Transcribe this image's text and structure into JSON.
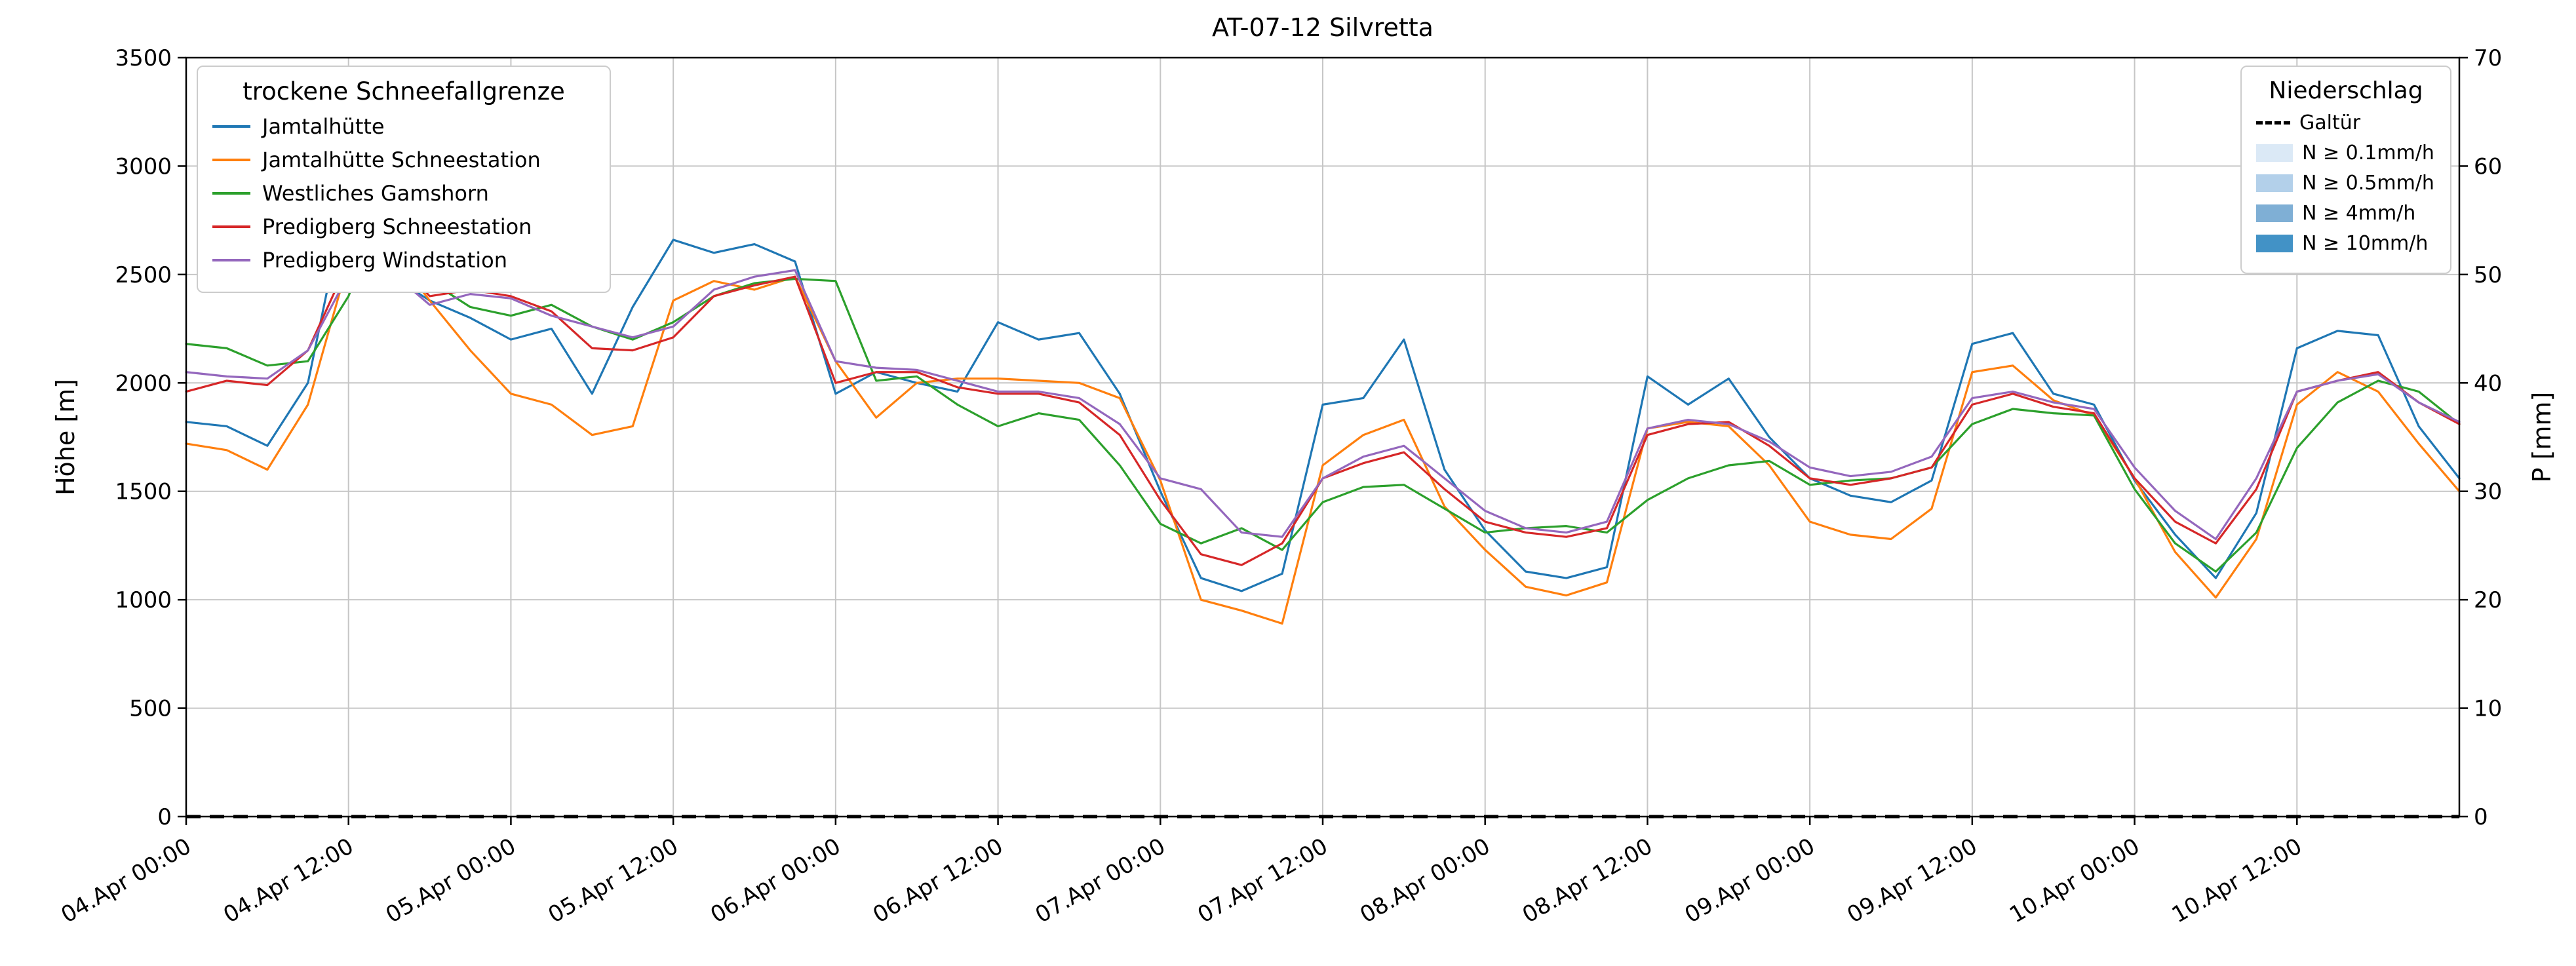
{
  "chart_data": {
    "type": "line",
    "title": "AT-07-12 Silvretta",
    "ylabel_left": "Höhe [m]",
    "ylabel_right": "P [mm]",
    "ylim_left": [
      0,
      3500
    ],
    "ylim_right": [
      0,
      70
    ],
    "y_ticks_left": [
      0,
      500,
      1000,
      1500,
      2000,
      2500,
      3000,
      3500
    ],
    "y_ticks_right": [
      0,
      10,
      20,
      30,
      40,
      50,
      60,
      70
    ],
    "x_range_hours": [
      0,
      168
    ],
    "grid": true,
    "colors": {
      "grid": "#c6c6c6",
      "spine": "#000000",
      "background": "#ffffff"
    },
    "x_ticks": [
      {
        "hour": 0,
        "label": "04.Apr 00:00"
      },
      {
        "hour": 12,
        "label": "04.Apr 12:00"
      },
      {
        "hour": 24,
        "label": "05.Apr 00:00"
      },
      {
        "hour": 36,
        "label": "05.Apr 12:00"
      },
      {
        "hour": 48,
        "label": "06.Apr 00:00"
      },
      {
        "hour": 60,
        "label": "06.Apr 12:00"
      },
      {
        "hour": 72,
        "label": "07.Apr 00:00"
      },
      {
        "hour": 84,
        "label": "07.Apr 12:00"
      },
      {
        "hour": 96,
        "label": "08.Apr 00:00"
      },
      {
        "hour": 108,
        "label": "08.Apr 12:00"
      },
      {
        "hour": 120,
        "label": "09.Apr 00:00"
      },
      {
        "hour": 132,
        "label": "09.Apr 12:00"
      },
      {
        "hour": 144,
        "label": "10.Apr 00:00"
      },
      {
        "hour": 156,
        "label": "10.Apr 12:00"
      }
    ],
    "x_hours": [
      0,
      3,
      6,
      9,
      12,
      15,
      18,
      21,
      24,
      27,
      30,
      33,
      36,
      39,
      42,
      45,
      48,
      51,
      54,
      57,
      60,
      63,
      66,
      69,
      72,
      75,
      78,
      81,
      84,
      87,
      90,
      93,
      96,
      99,
      102,
      105,
      108,
      111,
      114,
      117,
      120,
      123,
      126,
      129,
      132,
      135,
      138,
      141,
      144,
      147,
      150,
      153,
      156,
      159,
      162,
      165,
      168
    ],
    "series": [
      {
        "name": "Jamtalhütte",
        "color": "#1f77b4",
        "values": [
          1820,
          1800,
          1710,
          2000,
          2900,
          2500,
          2380,
          2300,
          2200,
          2250,
          1950,
          2350,
          2660,
          2600,
          2640,
          2560,
          1950,
          2050,
          2000,
          1960,
          2280,
          2200,
          2230,
          1950,
          1500,
          1100,
          1040,
          1120,
          1900,
          1930,
          2200,
          1600,
          1320,
          1130,
          1100,
          1150,
          2030,
          1900,
          2020,
          1750,
          1560,
          1480,
          1450,
          1550,
          2180,
          2230,
          1950,
          1900,
          1550,
          1300,
          1100,
          1400,
          2160,
          2240,
          2220,
          1800,
          1560
        ]
      },
      {
        "name": "Jamtalhütte Schneestation",
        "color": "#ff7f0e",
        "values": [
          1720,
          1690,
          1600,
          1900,
          2560,
          2620,
          2380,
          2150,
          1950,
          1900,
          1760,
          1800,
          2380,
          2470,
          2430,
          2490,
          2100,
          1840,
          2000,
          2020,
          2020,
          2010,
          2000,
          1930,
          1550,
          1000,
          950,
          890,
          1620,
          1760,
          1830,
          1430,
          1230,
          1060,
          1020,
          1080,
          1790,
          1820,
          1800,
          1620,
          1360,
          1300,
          1280,
          1420,
          2050,
          2080,
          1920,
          1850,
          1560,
          1220,
          1010,
          1280,
          1900,
          2050,
          1960,
          1720,
          1500
        ]
      },
      {
        "name": "Westliches Gamshorn",
        "color": "#2ca02c",
        "values": [
          2180,
          2160,
          2080,
          2100,
          2400,
          2880,
          2470,
          2350,
          2310,
          2360,
          2260,
          2200,
          2280,
          2400,
          2460,
          2480,
          2470,
          2010,
          2030,
          1900,
          1800,
          1860,
          1830,
          1620,
          1350,
          1260,
          1330,
          1230,
          1450,
          1520,
          1530,
          1420,
          1310,
          1330,
          1340,
          1310,
          1460,
          1560,
          1620,
          1640,
          1530,
          1550,
          1560,
          1610,
          1810,
          1880,
          1860,
          1850,
          1510,
          1260,
          1130,
          1310,
          1700,
          1910,
          2010,
          1960,
          1810
        ]
      },
      {
        "name": "Predigberg Schneestation",
        "color": "#d62728",
        "values": [
          1960,
          2010,
          1990,
          2150,
          2560,
          2600,
          2400,
          2430,
          2400,
          2330,
          2160,
          2150,
          2210,
          2400,
          2450,
          2490,
          2000,
          2050,
          2050,
          1980,
          1950,
          1950,
          1910,
          1760,
          1460,
          1210,
          1160,
          1260,
          1560,
          1630,
          1680,
          1510,
          1360,
          1310,
          1290,
          1330,
          1760,
          1810,
          1820,
          1710,
          1560,
          1530,
          1560,
          1610,
          1900,
          1950,
          1890,
          1860,
          1560,
          1360,
          1260,
          1510,
          1960,
          2010,
          2050,
          1910,
          1810
        ]
      },
      {
        "name": "Predigberg Windstation",
        "color": "#9467bd",
        "values": [
          2050,
          2030,
          2020,
          2150,
          2500,
          2520,
          2360,
          2410,
          2390,
          2310,
          2260,
          2210,
          2260,
          2430,
          2490,
          2520,
          2100,
          2070,
          2060,
          2010,
          1960,
          1960,
          1930,
          1810,
          1560,
          1510,
          1310,
          1290,
          1560,
          1660,
          1710,
          1560,
          1410,
          1330,
          1310,
          1360,
          1790,
          1830,
          1810,
          1730,
          1610,
          1570,
          1590,
          1660,
          1930,
          1960,
          1910,
          1880,
          1610,
          1410,
          1280,
          1560,
          1960,
          2010,
          2040,
          1910,
          1820
        ]
      }
    ],
    "precipitation_line": {
      "name": "Galtür",
      "color": "#000000",
      "style": "dashed",
      "axis": "right",
      "x": [
        0,
        168
      ],
      "values": [
        0,
        0
      ]
    },
    "legend_snowline": {
      "title": "trockene Schneefallgrenze"
    },
    "legend_precip": {
      "title": "Niederschlag",
      "entries": [
        {
          "label": "Galtür",
          "swatch": "dashed-line",
          "color": "#000000"
        },
        {
          "label": "N ≥ 0.1mm/h",
          "swatch": "patch",
          "color": "#dbe9f6"
        },
        {
          "label": "N ≥ 0.5mm/h",
          "swatch": "patch",
          "color": "#b3d0ea"
        },
        {
          "label": "N ≥ 4mm/h",
          "swatch": "patch",
          "color": "#7fafd5"
        },
        {
          "label": "N ≥ 10mm/h",
          "swatch": "patch",
          "color": "#4292c6"
        }
      ]
    }
  }
}
